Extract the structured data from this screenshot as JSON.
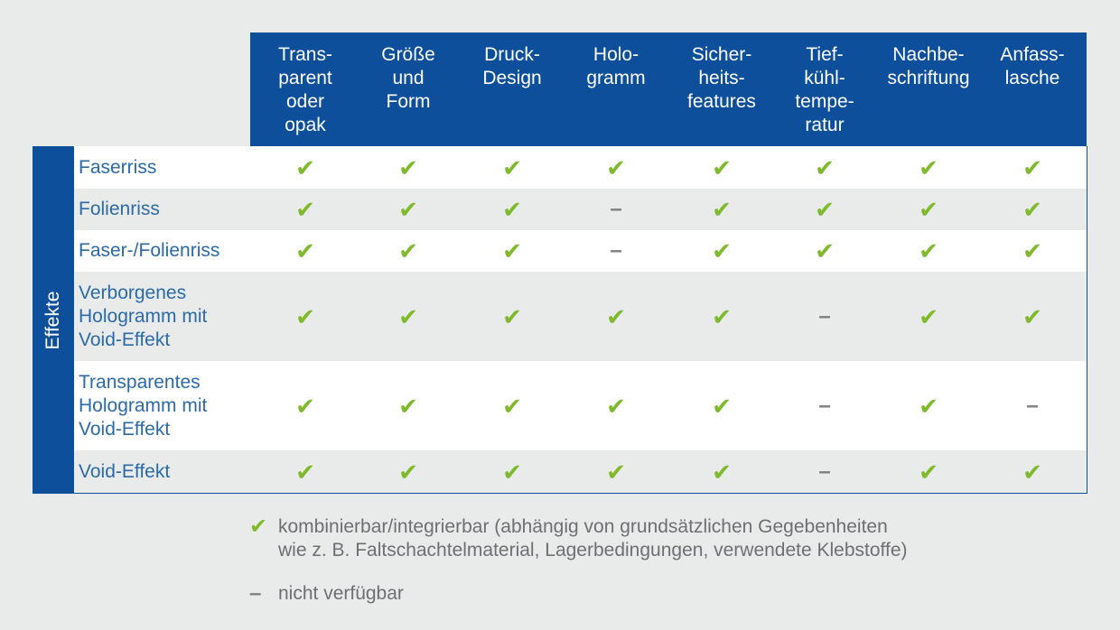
{
  "colors": {
    "header_bg": "#0d4f9b",
    "check": "#7fba2d",
    "dash": "#7d7f82",
    "row_label": "#2b6aa8",
    "background": "#e9ebeb"
  },
  "table": {
    "sidebar_label": "Effekte",
    "columns": [
      "Trans-\nparent\noder\nopak",
      "Größe\nund\nForm",
      "Druck-\nDesign",
      "Holo-\ngramm",
      "Sicher-\nheits-\nfeatures",
      "Tief-\nkühl-\ntempe-\nratur",
      "Nachbe-\nschriftung",
      "Anfass-\nlasche"
    ],
    "rows": [
      {
        "label": "Faserriss",
        "values": [
          "check",
          "check",
          "check",
          "check",
          "check",
          "check",
          "check",
          "check"
        ]
      },
      {
        "label": "Folienriss",
        "values": [
          "check",
          "check",
          "check",
          "dash",
          "check",
          "check",
          "check",
          "check"
        ]
      },
      {
        "label": "Faser-/Folienriss",
        "values": [
          "check",
          "check",
          "check",
          "dash",
          "check",
          "check",
          "check",
          "check"
        ]
      },
      {
        "label": "Verborgenes\nHologramm mit\nVoid-Effekt",
        "values": [
          "check",
          "check",
          "check",
          "check",
          "check",
          "dash",
          "check",
          "check"
        ]
      },
      {
        "label": "Transparentes\nHologramm mit\nVoid-Effekt",
        "values": [
          "check",
          "check",
          "check",
          "check",
          "check",
          "dash",
          "check",
          "dash"
        ]
      },
      {
        "label": "Void-Effekt",
        "values": [
          "check",
          "check",
          "check",
          "check",
          "check",
          "dash",
          "check",
          "check"
        ]
      }
    ]
  },
  "symbols": {
    "check": "✔",
    "dash": "–"
  },
  "legend": [
    {
      "icon": "check",
      "text": "kombinierbar/integrierbar (abhängig von grundsätzlichen Gegebenheiten\nwie z. B. Faltschachtelmaterial, Lagerbedingungen, verwendete Klebstoffe)"
    },
    {
      "icon": "dash",
      "text": "nicht verfügbar"
    }
  ]
}
